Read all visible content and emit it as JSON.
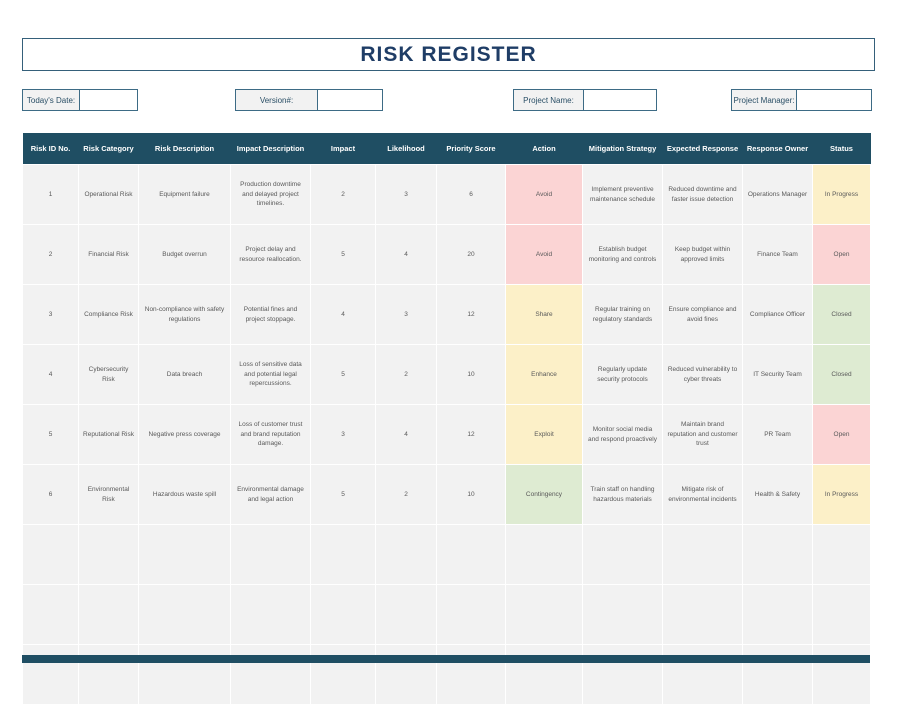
{
  "title": "RISK REGISTER",
  "fields": [
    {
      "label": "Today's Date:",
      "value": ""
    },
    {
      "label": "Version#:",
      "value": ""
    },
    {
      "label": "Project Name:",
      "value": ""
    },
    {
      "label": "Project Manager:",
      "value": ""
    }
  ],
  "colors": {
    "navy": "#1f4e63",
    "title_text": "#1f3d66",
    "cell_bg": "#f2f2f2",
    "cell_text": "#595959",
    "pink": "#fbd4d4",
    "yellow": "#fcf0c8",
    "green": "#deebd2",
    "field_border": "#3d6b85"
  },
  "table": {
    "headers": [
      "Risk ID No.",
      "Risk Category",
      "Risk Description",
      "Impact Description",
      "Impact",
      "Likelihood",
      "Priority Score",
      "Action",
      "Mitigation Strategy",
      "Expected Response",
      "Response Owner",
      "Status"
    ],
    "empty_rows": 3,
    "rows": [
      {
        "risk_id": "1",
        "category": "Operational Risk",
        "description": "Equipment failure",
        "impact_description": "Production downtime and delayed project timelines.",
        "impact": "2",
        "likelihood": "3",
        "priority_score": "6",
        "action": "Avoid",
        "action_bg": "pink",
        "mitigation": "Implement preventive maintenance schedule",
        "expected_response": "Reduced downtime and faster issue detection",
        "owner": "Operations Manager",
        "status": "In Progress",
        "status_bg": "yellow"
      },
      {
        "risk_id": "2",
        "category": "Financial Risk",
        "description": "Budget overrun",
        "impact_description": "Project delay and resource reallocation.",
        "impact": "5",
        "likelihood": "4",
        "priority_score": "20",
        "action": "Avoid",
        "action_bg": "pink",
        "mitigation": "Establish budget monitoring and controls",
        "expected_response": "Keep budget within approved limits",
        "owner": "Finance Team",
        "status": "Open",
        "status_bg": "pink"
      },
      {
        "risk_id": "3",
        "category": "Compliance Risk",
        "description": "Non-compliance with safety regulations",
        "impact_description": "Potential fines and project stoppage.",
        "impact": "4",
        "likelihood": "3",
        "priority_score": "12",
        "action": "Share",
        "action_bg": "yellow",
        "mitigation": "Regular training on regulatory standards",
        "expected_response": "Ensure compliance and avoid fines",
        "owner": "Compliance Officer",
        "status": "Closed",
        "status_bg": "green"
      },
      {
        "risk_id": "4",
        "category": "Cybersecurity Risk",
        "description": "Data breach",
        "impact_description": "Loss of sensitive data and potential legal repercussions.",
        "impact": "5",
        "likelihood": "2",
        "priority_score": "10",
        "action": "Enhance",
        "action_bg": "yellow",
        "mitigation": "Regularly update security protocols",
        "expected_response": "Reduced vulnerability to cyber threats",
        "owner": "IT Security Team",
        "status": "Closed",
        "status_bg": "green"
      },
      {
        "risk_id": "5",
        "category": "Reputational Risk",
        "description": "Negative press coverage",
        "impact_description": "Loss of customer trust and brand reputation damage.",
        "impact": "3",
        "likelihood": "4",
        "priority_score": "12",
        "action": "Exploit",
        "action_bg": "yellow",
        "mitigation": "Monitor social media and respond proactively",
        "expected_response": "Maintain brand reputation and customer trust",
        "owner": "PR Team",
        "status": "Open",
        "status_bg": "pink"
      },
      {
        "risk_id": "6",
        "category": "Environmental Risk",
        "description": "Hazardous waste spill",
        "impact_description": "Environmental damage and legal action",
        "impact": "5",
        "likelihood": "2",
        "priority_score": "10",
        "action": "Contingency",
        "action_bg": "green",
        "mitigation": "Train staff on handling hazardous materials",
        "expected_response": "Mitigate risk of environmental incidents",
        "owner": "Health & Safety",
        "status": "In Progress",
        "status_bg": "yellow"
      }
    ]
  }
}
